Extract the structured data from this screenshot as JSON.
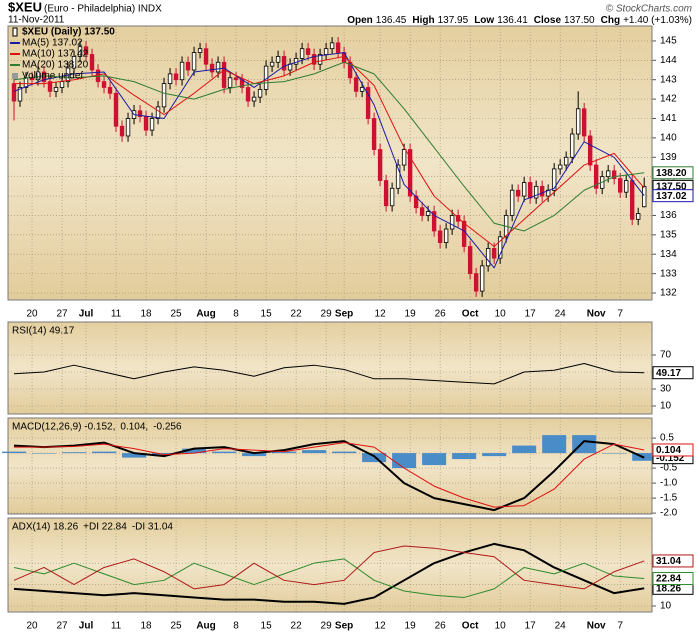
{
  "header": {
    "symbol": "$XEU",
    "name": "(Euro - Philadelphia) INDX",
    "source": "© StockCharts.com",
    "date": "11-Nov-2011",
    "quote": [
      {
        "label": "Open",
        "value": "136.45"
      },
      {
        "label": "High",
        "value": "137.95"
      },
      {
        "label": "Low",
        "value": "136.41"
      },
      {
        "label": "Close",
        "value": "137.50"
      },
      {
        "label": "Chg",
        "value": "+1.40 (+1.03%)"
      }
    ]
  },
  "chart_data": [
    {
      "type": "candlestick",
      "name": "$XEU (Daily) 137.50",
      "notes": [
        "Volume undef"
      ],
      "legend_layout": "column",
      "show_dates": true,
      "grid": true,
      "up_color": "#000000",
      "down_color": "#cc1133",
      "xlim": [
        -1,
        106.3
      ],
      "xticks": [
        {
          "value": 3,
          "label": "20"
        },
        {
          "value": 8,
          "label": "27"
        },
        {
          "value": 12,
          "label": "Jul"
        },
        {
          "value": 17,
          "label": "11"
        },
        {
          "value": 22,
          "label": "18"
        },
        {
          "value": 27,
          "label": "25"
        },
        {
          "value": 32,
          "label": "Aug"
        },
        {
          "value": 37,
          "label": "8"
        },
        {
          "value": 42,
          "label": "15"
        },
        {
          "value": 47,
          "label": "22"
        },
        {
          "value": 52,
          "label": "29"
        },
        {
          "value": 55,
          "label": "Sep"
        },
        {
          "value": 61,
          "label": "12"
        },
        {
          "value": 66,
          "label": "19"
        },
        {
          "value": 71,
          "label": "26"
        },
        {
          "value": 76,
          "label": "Oct"
        },
        {
          "value": 81,
          "label": "10"
        },
        {
          "value": 86,
          "label": "17"
        },
        {
          "value": 91,
          "label": "24"
        },
        {
          "value": 97,
          "label": "Nov"
        },
        {
          "value": 101,
          "label": "7"
        }
      ],
      "ylim": [
        131.64,
        145.77
      ],
      "yticks": [
        132,
        133,
        134,
        135,
        136,
        137,
        138,
        139,
        140,
        141,
        142,
        143,
        144,
        145
      ],
      "x": [
        0,
        1,
        2,
        3,
        4,
        5,
        6,
        7,
        8,
        9,
        10,
        11,
        12,
        13,
        14,
        15,
        16,
        17,
        18,
        19,
        20,
        21,
        22,
        23,
        24,
        25,
        26,
        27,
        28,
        29,
        30,
        31,
        32,
        33,
        34,
        35,
        36,
        37,
        38,
        39,
        40,
        41,
        42,
        43,
        44,
        45,
        46,
        47,
        48,
        49,
        50,
        51,
        52,
        53,
        54,
        55,
        56,
        57,
        58,
        59,
        60,
        61,
        62,
        63,
        64,
        65,
        66,
        67,
        68,
        69,
        70,
        71,
        72,
        73,
        74,
        75,
        76,
        77,
        78,
        79,
        80,
        81,
        82,
        83,
        84,
        85,
        86,
        87,
        88,
        89,
        90,
        91,
        92,
        93,
        94,
        95,
        96,
        97,
        98,
        99,
        100,
        101,
        102,
        103,
        104,
        105
      ],
      "open": [
        142.8,
        141.9,
        142.6,
        143.1,
        143.0,
        143.4,
        142.9,
        142.4,
        142.6,
        142.9,
        143.6,
        144.2,
        144.7,
        144.3,
        143.5,
        142.9,
        142.6,
        142.3,
        140.6,
        140.1,
        141.0,
        141.4,
        141.1,
        140.4,
        141.0,
        141.6,
        142.8,
        143.3,
        143.0,
        143.9,
        143.5,
        144.4,
        144.6,
        143.8,
        143.4,
        143.9,
        142.6,
        143.1,
        143.0,
        142.6,
        141.9,
        142.1,
        142.5,
        143.7,
        143.9,
        144.2,
        143.5,
        143.8,
        144.1,
        144.6,
        144.3,
        143.8,
        144.3,
        144.6,
        144.9,
        144.4,
        143.9,
        143.1,
        142.4,
        142.6,
        141.0,
        139.4,
        137.8,
        136.5,
        137.4,
        138.6,
        139.4,
        137.0,
        136.4,
        136.0,
        136.2,
        135.2,
        134.6,
        135.3,
        136.0,
        135.7,
        134.4,
        133.0,
        132.1,
        133.4,
        134.3,
        133.8,
        134.9,
        136.0,
        137.3,
        137.0,
        137.7,
        136.9,
        137.5,
        137.0,
        137.3,
        138.4,
        138.6,
        139.0,
        140.2,
        141.5,
        140.1,
        138.6,
        137.4,
        138.0,
        138.3,
        137.9,
        137.2,
        137.8,
        135.8,
        136.45
      ],
      "high": [
        143.1,
        142.9,
        143.4,
        143.4,
        143.7,
        143.7,
        143.2,
        142.9,
        143.2,
        143.9,
        144.5,
        145.0,
        145.0,
        144.6,
        143.8,
        143.2,
        142.9,
        142.6,
        140.9,
        141.3,
        141.7,
        141.7,
        141.4,
        141.3,
        141.9,
        143.1,
        143.6,
        143.6,
        144.2,
        144.2,
        144.7,
        144.9,
        144.9,
        144.1,
        144.2,
        144.2,
        143.4,
        143.4,
        143.3,
        142.9,
        142.4,
        142.8,
        144.0,
        144.2,
        144.5,
        144.5,
        144.1,
        144.4,
        144.9,
        144.9,
        144.6,
        144.6,
        144.9,
        145.2,
        145.2,
        144.7,
        144.2,
        143.4,
        142.9,
        142.9,
        141.3,
        139.7,
        138.1,
        137.7,
        138.9,
        139.7,
        139.7,
        137.3,
        136.7,
        136.5,
        136.5,
        135.5,
        135.6,
        136.3,
        136.3,
        136.0,
        134.7,
        133.3,
        133.7,
        134.6,
        134.6,
        135.2,
        136.3,
        137.6,
        137.6,
        138.0,
        138.0,
        137.8,
        137.8,
        137.6,
        138.7,
        138.9,
        139.3,
        140.5,
        142.4,
        141.8,
        140.4,
        138.9,
        138.3,
        138.6,
        138.6,
        138.2,
        138.1,
        138.1,
        136.4,
        137.95
      ],
      "low": [
        140.9,
        141.6,
        142.3,
        142.7,
        142.7,
        142.6,
        142.1,
        142.1,
        142.3,
        142.6,
        143.3,
        143.9,
        144.0,
        143.2,
        142.6,
        142.3,
        142.0,
        140.3,
        139.8,
        139.8,
        140.7,
        140.8,
        140.1,
        140.1,
        140.7,
        141.3,
        142.5,
        142.7,
        142.7,
        143.2,
        143.2,
        144.1,
        143.5,
        143.1,
        143.1,
        142.3,
        142.3,
        142.7,
        142.3,
        141.6,
        141.6,
        141.8,
        142.2,
        143.4,
        143.6,
        143.2,
        143.2,
        143.5,
        143.8,
        144.0,
        143.5,
        143.5,
        144.0,
        144.3,
        144.1,
        143.6,
        142.8,
        142.1,
        142.1,
        140.7,
        139.1,
        137.5,
        136.2,
        136.2,
        137.1,
        138.3,
        136.7,
        136.1,
        135.7,
        135.7,
        134.9,
        134.3,
        134.3,
        135.0,
        135.4,
        134.1,
        132.7,
        131.8,
        131.8,
        133.1,
        133.5,
        133.5,
        134.6,
        135.7,
        136.7,
        136.7,
        136.6,
        136.6,
        136.7,
        136.7,
        137.0,
        138.1,
        138.3,
        138.7,
        139.9,
        139.8,
        138.3,
        137.1,
        137.1,
        137.7,
        137.6,
        136.9,
        136.9,
        135.5,
        135.5,
        136.41
      ],
      "close": [
        141.9,
        142.6,
        143.1,
        143.0,
        143.4,
        142.9,
        142.4,
        142.6,
        142.9,
        143.6,
        144.2,
        144.7,
        144.3,
        143.5,
        142.9,
        142.6,
        142.3,
        140.6,
        140.1,
        141.0,
        141.4,
        141.1,
        140.4,
        141.0,
        141.6,
        142.8,
        143.3,
        143.0,
        143.9,
        143.5,
        144.4,
        144.6,
        143.8,
        143.4,
        143.9,
        142.6,
        143.1,
        143.0,
        142.6,
        141.9,
        142.1,
        142.5,
        143.7,
        143.9,
        144.2,
        143.5,
        143.8,
        144.1,
        144.6,
        144.3,
        143.8,
        144.3,
        144.6,
        144.9,
        144.4,
        143.9,
        143.1,
        142.4,
        142.6,
        141.0,
        139.4,
        137.8,
        136.5,
        137.4,
        138.6,
        139.4,
        137.0,
        136.4,
        136.0,
        136.2,
        135.2,
        134.6,
        135.3,
        136.0,
        135.7,
        134.4,
        133.0,
        132.1,
        133.4,
        134.3,
        133.8,
        134.9,
        136.0,
        137.3,
        137.0,
        137.7,
        136.9,
        137.5,
        137.0,
        137.3,
        138.4,
        138.6,
        139.0,
        140.2,
        141.5,
        140.1,
        138.6,
        137.4,
        138.0,
        138.3,
        137.9,
        137.2,
        137.8,
        135.8,
        136.1,
        137.5
      ],
      "series": [
        {
          "name": "MA(5) 137.02",
          "color": "#1a1aa6",
          "x": [
            0,
            5,
            10,
            15,
            20,
            25,
            30,
            35,
            40,
            45,
            50,
            55,
            60,
            65,
            70,
            75,
            80,
            85,
            90,
            95,
            100,
            105
          ],
          "values": [
            142.4,
            143.0,
            143.3,
            143.4,
            141.2,
            141.0,
            143.4,
            143.6,
            142.6,
            143.7,
            144.2,
            144.4,
            141.7,
            137.6,
            136.0,
            135.2,
            133.3,
            136.8,
            137.4,
            139.8,
            139.0,
            137.02
          ]
        },
        {
          "name": "MA(10) 137.42",
          "color": "#e01010",
          "x": [
            0,
            5,
            10,
            15,
            20,
            25,
            30,
            35,
            40,
            45,
            50,
            55,
            60,
            65,
            70,
            75,
            80,
            85,
            90,
            95,
            100,
            105
          ],
          "values": [
            142.8,
            142.8,
            143.0,
            143.3,
            142.2,
            141.2,
            142.3,
            143.5,
            142.8,
            143.2,
            143.9,
            144.2,
            142.7,
            139.5,
            137.0,
            135.6,
            134.4,
            135.8,
            137.2,
            138.6,
            139.2,
            137.42
          ]
        },
        {
          "name": "MA(20) 138.20",
          "color": "#2e7d32",
          "x": [
            0,
            5,
            10,
            15,
            20,
            25,
            30,
            35,
            40,
            45,
            50,
            55,
            60,
            65,
            70,
            75,
            80,
            85,
            90,
            95,
            100,
            105
          ],
          "values": [
            143.0,
            143.2,
            143.1,
            143.2,
            142.9,
            142.3,
            142.0,
            142.5,
            142.8,
            142.9,
            143.3,
            143.9,
            143.3,
            141.5,
            139.5,
            137.5,
            135.6,
            135.2,
            136.0,
            137.3,
            138.0,
            138.2
          ]
        }
      ],
      "price_flags": [
        {
          "value": 138.2,
          "label": "138.20",
          "color": "#2e7d32"
        },
        {
          "value": 137.5,
          "label": "137.50",
          "color": "#000000"
        },
        {
          "value": 137.02,
          "label": "137.02",
          "color": "#1a1aa6"
        }
      ]
    },
    {
      "type": "line",
      "title": "RSI(14) 49.17",
      "legend_layout": "row",
      "grid": true,
      "ylim": [
        0.6,
        108.8
      ],
      "yticks": [
        10,
        30,
        50,
        70
      ],
      "x": [
        0,
        5,
        10,
        15,
        20,
        25,
        30,
        35,
        40,
        45,
        50,
        55,
        60,
        65,
        70,
        75,
        80,
        85,
        90,
        95,
        100,
        105
      ],
      "series": [
        {
          "color": "#000000",
          "flag": true,
          "values": [
            48,
            50,
            58,
            50,
            42,
            50,
            56,
            52,
            45,
            55,
            58,
            53,
            42,
            42,
            40,
            38,
            36,
            50,
            52,
            60,
            50,
            49.17
          ]
        }
      ]
    },
    {
      "type": "line",
      "legend_layout": "row",
      "grid": true,
      "ylim": [
        -2.03,
        1.17
      ],
      "yticks": [
        0.5,
        {
          "value": 0,
          "label": "0.0"
        },
        {
          "value": -0.5,
          "label": "-0.5"
        },
        {
          "value": -1,
          "label": "-1.0"
        },
        -1.5,
        {
          "value": -2,
          "label": "-2.0"
        }
      ],
      "x": [
        0,
        5,
        10,
        15,
        20,
        25,
        30,
        35,
        40,
        45,
        50,
        55,
        60,
        65,
        70,
        75,
        80,
        85,
        90,
        95,
        100,
        105
      ],
      "series": [
        {
          "name": "-0.256",
          "color": "#4a8cc8",
          "style": "bar",
          "values": [
            0.05,
            0.0,
            0.03,
            0.05,
            -0.15,
            -0.05,
            0.15,
            0.05,
            -0.1,
            0.05,
            0.1,
            0.05,
            -0.3,
            -0.5,
            -0.4,
            -0.2,
            -0.1,
            0.25,
            0.6,
            0.6,
            0.0,
            -0.256
          ]
        },
        {
          "name": "MACD(12,26,9) -0.152,",
          "color": "#000000",
          "width": 2,
          "flag": true,
          "values": [
            0.25,
            0.2,
            0.25,
            0.35,
            0.0,
            -0.1,
            0.15,
            0.2,
            0.0,
            0.1,
            0.3,
            0.4,
            -0.1,
            -1.0,
            -1.5,
            -1.7,
            -1.9,
            -1.5,
            -0.6,
            0.4,
            0.3,
            -0.152
          ]
        },
        {
          "name": "0.104,",
          "color": "#e01010",
          "flag": true,
          "values": [
            0.2,
            0.2,
            0.22,
            0.3,
            0.15,
            -0.05,
            0.0,
            0.15,
            0.1,
            0.05,
            0.2,
            0.35,
            0.2,
            -0.5,
            -1.1,
            -1.5,
            -1.8,
            -1.75,
            -1.2,
            -0.2,
            0.3,
            0.104
          ]
        }
      ],
      "legend_order": [
        1,
        2,
        0
      ]
    },
    {
      "type": "line",
      "legend_layout": "row",
      "show_dates": true,
      "grid": true,
      "ylim": [
        7.2,
        51.1
      ],
      "yticks": [
        10,
        20,
        30
      ],
      "x": [
        0,
        5,
        10,
        15,
        20,
        25,
        30,
        35,
        40,
        45,
        50,
        55,
        60,
        65,
        70,
        75,
        80,
        85,
        90,
        95,
        100,
        105
      ],
      "series": [
        {
          "name": "ADX(14) 18.26",
          "color": "#000000",
          "width": 2,
          "flag": true,
          "values": [
            18,
            17,
            16,
            15,
            16,
            15,
            14,
            13,
            13,
            12,
            12,
            11,
            14,
            22,
            30,
            35,
            39,
            36,
            28,
            22,
            16,
            18.26
          ]
        },
        {
          "name": "+DI 22.84",
          "color": "#2e8b2e",
          "flag": true,
          "values": [
            28,
            25,
            30,
            25,
            20,
            22,
            30,
            25,
            20,
            25,
            30,
            32,
            22,
            17,
            15,
            14,
            18,
            28,
            25,
            30,
            24,
            22.84
          ]
        },
        {
          "name": "-DI 31.04",
          "color": "#b01818",
          "flag": true,
          "values": [
            22,
            28,
            20,
            28,
            32,
            26,
            18,
            20,
            30,
            22,
            20,
            22,
            35,
            38,
            37,
            35,
            33,
            22,
            20,
            18,
            26,
            31.04
          ]
        }
      ]
    }
  ]
}
